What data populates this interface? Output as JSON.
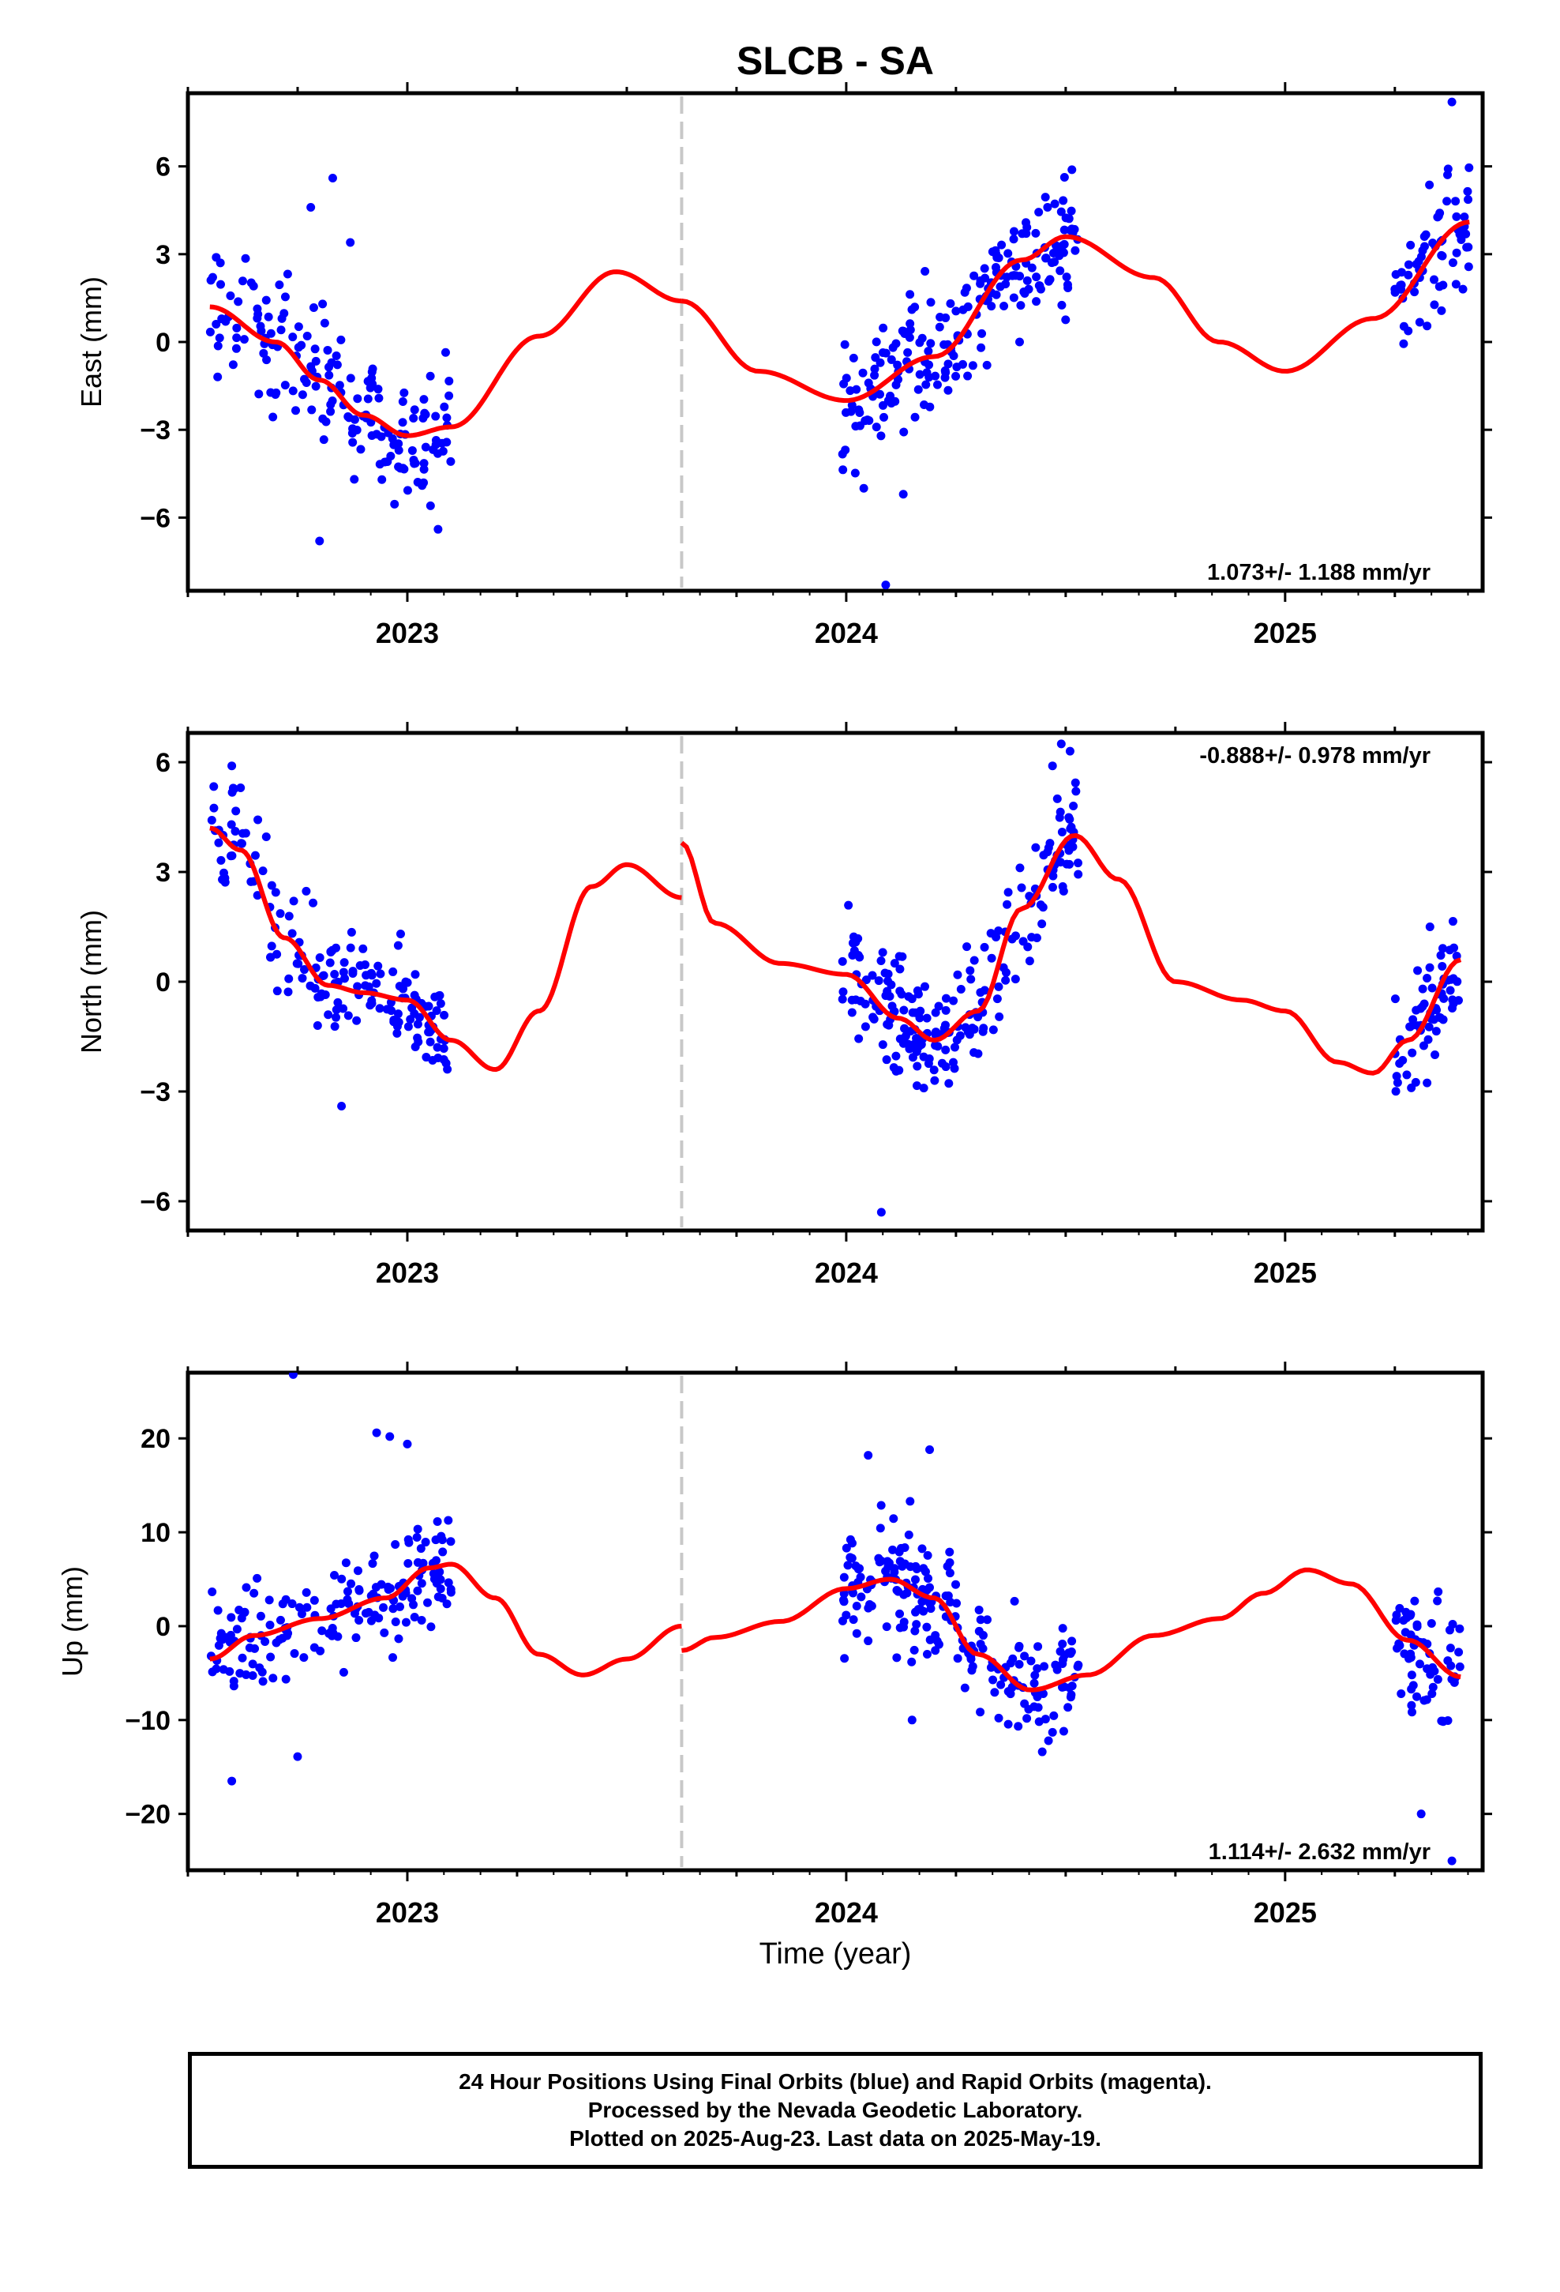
{
  "chart_data": {
    "type": "scatter",
    "title": "SLCB - SA",
    "xlabel": "Time (year)",
    "x_ticks": [
      "2023",
      "2024",
      "2025"
    ],
    "xlim": [
      2022.5,
      2025.45
    ],
    "gap_marker_x": 2023.625,
    "point_color": "#0000ff",
    "fit_color": "#ff0000",
    "gap_color": "#c8c8c8",
    "panels": [
      {
        "ylabel": "East (mm)",
        "yticks": [
          "6",
          "3",
          "0",
          "−3",
          "−6"
        ],
        "ylim": [
          -8.5,
          8.5
        ],
        "tick_values": [
          6,
          3,
          0,
          -3,
          -6
        ],
        "rate_label": "1.073+/- 1.188 mm/yr",
        "rate_position": "bottom-right",
        "segments": [
          {
            "x_range": [
              2022.55,
              2023.1
            ],
            "fit_x": [
              2022.55,
              2022.7,
              2022.8,
              2022.9,
              2023.0,
              2023.1,
              2023.3,
              2023.475,
              2023.625
            ],
            "fit_y": [
              1.2,
              0.0,
              -1.3,
              -2.5,
              -3.2,
              -2.9,
              0.2,
              2.4,
              1.4
            ]
          },
          {
            "x_range": [
              2023.99,
              2024.53
            ],
            "fit_x": [
              2023.625,
              2023.8,
              2024.0,
              2024.2,
              2024.4,
              2024.5,
              2024.7,
              2024.85,
              2025.0,
              2025.2,
              2025.42
            ],
            "fit_y": [
              1.4,
              -1.0,
              -2.0,
              -0.5,
              2.8,
              3.6,
              2.2,
              0.0,
              -1.0,
              0.8,
              4.1
            ]
          },
          {
            "x_range": [
              2025.25,
              2025.42
            ]
          }
        ],
        "point_count": [
          170,
          210,
          65
        ],
        "noise": 1.6,
        "outliers": [
          [
            2022.83,
            5.6
          ],
          [
            2022.78,
            4.6
          ],
          [
            2022.87,
            3.4
          ],
          [
            2022.8,
            -6.8
          ],
          [
            2023.07,
            -6.4
          ],
          [
            2024.09,
            -8.3
          ],
          [
            2024.13,
            -5.2
          ],
          [
            2024.04,
            -5.0
          ],
          [
            2025.38,
            8.2
          ]
        ]
      },
      {
        "ylabel": "North (mm)",
        "yticks": [
          "6",
          "3",
          "0",
          "−3",
          "−6"
        ],
        "ylim": [
          -6.8,
          6.8
        ],
        "tick_values": [
          6,
          3,
          0,
          -3,
          -6
        ],
        "rate_label": "-0.888+/- 0.978 mm/yr",
        "rate_position": "top-right",
        "segments": [
          {
            "x_range": [
              2022.55,
              2023.1
            ],
            "fit_x": [
              2022.55,
              2022.62,
              2022.72,
              2022.82,
              2022.9,
              2023.0,
              2023.1,
              2023.2,
              2023.3,
              2023.42,
              2023.5,
              2023.625
            ],
            "fit_y": [
              4.2,
              3.6,
              1.2,
              -0.1,
              -0.3,
              -0.5,
              -1.6,
              -2.4,
              -0.8,
              2.6,
              3.2,
              2.3
            ]
          },
          {
            "x_range": [
              2023.99,
              2024.53
            ],
            "fit_x": [
              2023.625,
              2023.7,
              2023.85,
              2024.0,
              2024.12,
              2024.2,
              2024.3,
              2024.4,
              2024.52,
              2024.62,
              2024.75,
              2024.9,
              2025.0,
              2025.12,
              2025.2,
              2025.28,
              2025.4
            ],
            "fit_y": [
              3.8,
              1.6,
              0.5,
              0.2,
              -1.0,
              -1.6,
              -0.8,
              2.0,
              4.0,
              2.8,
              0.0,
              -0.5,
              -0.8,
              -2.2,
              -2.5,
              -1.6,
              0.6
            ]
          },
          {
            "x_range": [
              2025.25,
              2025.4
            ]
          }
        ],
        "point_count": [
          170,
          210,
          65
        ],
        "noise": 1.1,
        "outliers": [
          [
            2022.6,
            5.9
          ],
          [
            2022.62,
            5.3
          ],
          [
            2024.08,
            -6.3
          ],
          [
            2024.49,
            6.5
          ],
          [
            2024.51,
            6.3
          ],
          [
            2024.47,
            5.9
          ],
          [
            2022.85,
            -3.4
          ],
          [
            2025.33,
            1.5
          ]
        ]
      },
      {
        "ylabel": "Up (mm)",
        "yticks": [
          "20",
          "10",
          "0",
          "−10",
          "−20"
        ],
        "ylim": [
          -26,
          27
        ],
        "tick_values": [
          20,
          10,
          0,
          -10,
          -20
        ],
        "rate_label": "1.114+/- 2.632 mm/yr",
        "rate_position": "bottom-right",
        "segments": [
          {
            "x_range": [
              2022.55,
              2023.1
            ],
            "fit_x": [
              2022.55,
              2022.65,
              2022.8,
              2022.95,
              2023.05,
              2023.1,
              2023.2,
              2023.3,
              2023.4,
              2023.5,
              2023.625
            ],
            "fit_y": [
              -3.5,
              -1.0,
              0.8,
              3.0,
              6.2,
              6.6,
              3.0,
              -3.0,
              -5.2,
              -3.5,
              0.0
            ]
          },
          {
            "x_range": [
              2023.99,
              2024.53
            ],
            "fit_x": [
              2023.625,
              2023.7,
              2023.85,
              2024.0,
              2024.1,
              2024.2,
              2024.3,
              2024.42,
              2024.55,
              2024.7,
              2024.85,
              2024.95,
              2025.05,
              2025.15,
              2025.28,
              2025.4
            ],
            "fit_y": [
              -2.6,
              -1.2,
              0.5,
              4.0,
              5.0,
              3.0,
              -3.0,
              -6.8,
              -5.2,
              -1.0,
              0.8,
              3.5,
              6.0,
              4.5,
              -1.5,
              -5.4
            ]
          },
          {
            "x_range": [
              2025.25,
              2025.4
            ]
          }
        ],
        "point_count": [
          170,
          210,
          65
        ],
        "noise": 4.5,
        "outliers": [
          [
            2022.74,
            26.8
          ],
          [
            2022.93,
            20.6
          ],
          [
            2022.96,
            20.2
          ],
          [
            2023.0,
            19.4
          ],
          [
            2024.19,
            18.8
          ],
          [
            2024.05,
            18.2
          ],
          [
            2022.6,
            -16.5
          ],
          [
            2025.31,
            -20.0
          ],
          [
            2025.38,
            -25.0
          ],
          [
            2022.75,
            -13.9
          ],
          [
            2024.15,
            -10.0
          ]
        ]
      }
    ]
  },
  "footer": {
    "line1": "24 Hour Positions Using Final Orbits (blue) and Rapid Orbits (magenta).",
    "line2": "Processed by the Nevada Geodetic Laboratory.",
    "line3": "Plotted on 2025-Aug-23. Last data on 2025-May-19."
  }
}
